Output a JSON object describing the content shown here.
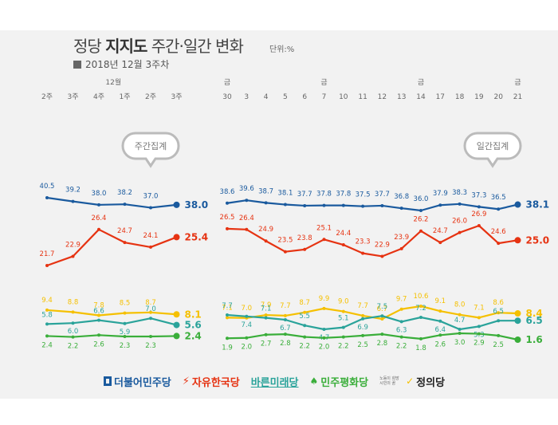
{
  "header": {
    "title_main": "정당 ",
    "title_bold": "지지도",
    "title_rest": " 주간·일간 변화",
    "unit": "단위:%",
    "subtitle": "2018년 12월 3주차"
  },
  "chart_data": {
    "type": "line",
    "weekly": {
      "month_label": "12월",
      "categories": [
        "2주",
        "3주",
        "4주",
        "1주",
        "2주",
        "3주"
      ],
      "bubble_label": "주간집계",
      "series": [
        {
          "color": "#1a5a9e",
          "values": [
            40.5,
            39.2,
            38.0,
            38.2,
            37.0,
            38.0
          ]
        },
        {
          "color": "#e63312",
          "values": [
            21.7,
            22.9,
            26.4,
            24.7,
            24.1,
            25.4
          ]
        },
        {
          "color": "#f5c000",
          "values": [
            9.4,
            8.8,
            7.8,
            8.5,
            8.7,
            8.1
          ]
        },
        {
          "color": "#2aa39a",
          "values": [
            5.8,
            6.0,
            6.6,
            5.9,
            7.0,
            5.6
          ]
        },
        {
          "color": "#3aae3a",
          "values": [
            2.4,
            2.2,
            2.6,
            2.3,
            2.3,
            2.4
          ]
        }
      ]
    },
    "daily": {
      "friday_label": "금",
      "categories": [
        "30",
        "3",
        "4",
        "5",
        "6",
        "7",
        "10",
        "11",
        "12",
        "13",
        "14",
        "17",
        "18",
        "19",
        "20",
        "21"
      ],
      "friday_indices": [
        0,
        5,
        10,
        15
      ],
      "bubble_label": "일간집계",
      "series": [
        {
          "color": "#1a5a9e",
          "values": [
            38.6,
            39.6,
            38.7,
            38.1,
            37.7,
            37.8,
            37.8,
            37.5,
            37.7,
            36.8,
            36.0,
            37.9,
            38.3,
            37.3,
            36.5,
            38.1
          ]
        },
        {
          "color": "#e63312",
          "values": [
            26.5,
            26.4,
            24.9,
            23.5,
            23.8,
            25.1,
            24.4,
            23.3,
            22.9,
            23.9,
            26.2,
            24.7,
            26.0,
            26.9,
            24.6,
            25.0
          ]
        },
        {
          "color": "#f5c000",
          "values": [
            7.1,
            7.0,
            7.9,
            7.7,
            8.7,
            9.9,
            9.0,
            7.7,
            6.7,
            9.7,
            10.6,
            9.1,
            8.0,
            7.1,
            8.6,
            8.4
          ]
        },
        {
          "color": "#2aa39a",
          "values": [
            7.7,
            7.4,
            7.1,
            6.7,
            5.5,
            4.7,
            5.1,
            6.9,
            7.5,
            6.3,
            7.2,
            6.4,
            4.7,
            5.3,
            6.5,
            6.5
          ]
        },
        {
          "color": "#3aae3a",
          "values": [
            1.9,
            2.0,
            2.7,
            2.8,
            2.2,
            2.0,
            2.2,
            2.5,
            2.8,
            2.2,
            1.8,
            2.6,
            3.0,
            2.9,
            2.5,
            1.6
          ]
        }
      ]
    }
  },
  "legend": {
    "parties": [
      {
        "name": "더불어민주당",
        "color": "#1a5a9e"
      },
      {
        "name": "자유한국당",
        "color": "#e63312"
      },
      {
        "name": "바른미래당",
        "color": "#2aa39a"
      },
      {
        "name": "민주평화당",
        "color": "#3aae3a"
      },
      {
        "name": "정의당",
        "color": "#222222",
        "prefix": "노동이 희망 시민의 꿈",
        "mark_color": "#f5c000"
      }
    ]
  }
}
